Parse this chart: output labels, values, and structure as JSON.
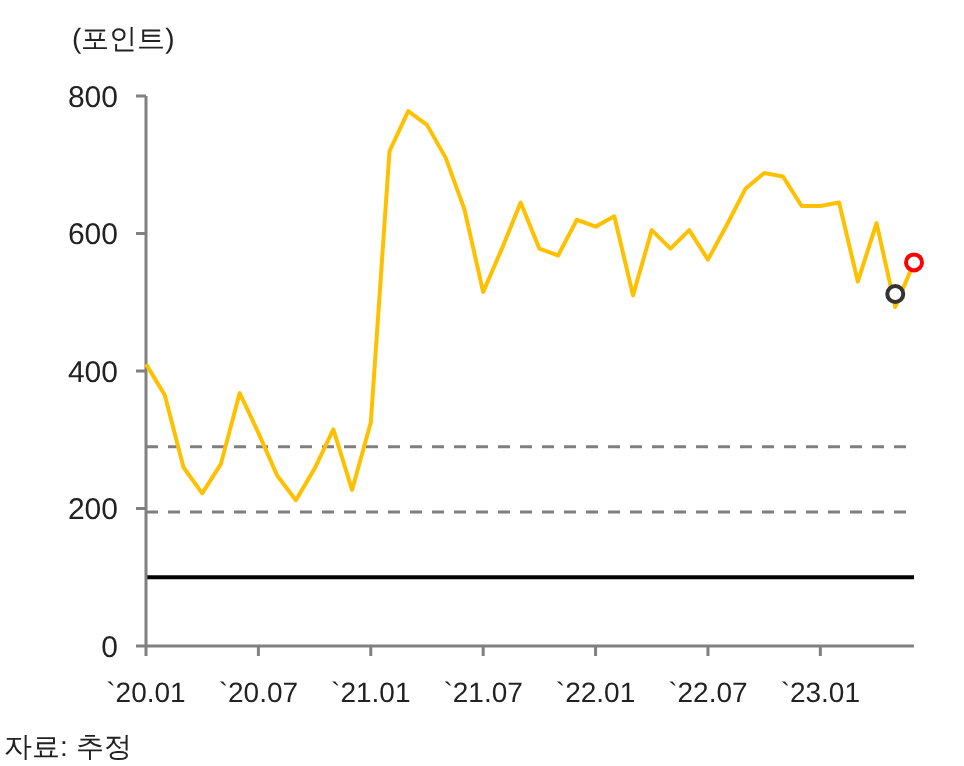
{
  "chart_data": {
    "type": "line",
    "ylabel": "(포인트)",
    "categories": [
      "`20.01",
      null,
      null,
      null,
      null,
      null,
      "`20.07",
      null,
      null,
      null,
      null,
      null,
      "`21.01",
      null,
      null,
      null,
      null,
      null,
      "`21.07",
      null,
      null,
      null,
      null,
      null,
      "`22.01",
      null,
      null,
      null,
      null,
      null,
      "`22.07",
      null,
      null,
      null,
      null,
      null,
      "`23.01",
      null,
      null,
      null,
      null,
      null
    ],
    "series": [
      {
        "color": "#ffc000",
        "values": [
          410,
          365,
          260,
          222,
          265,
          368,
          310,
          248,
          212,
          258,
          315,
          227,
          325,
          720,
          778,
          758,
          710,
          635,
          515,
          578,
          645,
          578,
          568,
          620,
          610,
          625,
          510,
          605,
          578,
          605,
          562,
          612,
          665,
          688,
          683,
          640,
          640,
          645,
          530,
          615,
          493,
          558
        ],
        "marker": "none"
      },
      {
        "type": "scatter",
        "color": "#333333",
        "marker": "circle",
        "values": [
          null,
          null,
          null,
          null,
          null,
          null,
          null,
          null,
          null,
          null,
          null,
          null,
          null,
          null,
          null,
          null,
          null,
          null,
          null,
          null,
          null,
          null,
          null,
          null,
          null,
          null,
          null,
          null,
          null,
          null,
          null,
          null,
          null,
          null,
          null,
          null,
          null,
          null,
          null,
          null,
          512,
          null
        ]
      },
      {
        "type": "scatter",
        "color": "#ff0000",
        "marker": "circle",
        "values": [
          null,
          null,
          null,
          null,
          null,
          null,
          null,
          null,
          null,
          null,
          null,
          null,
          null,
          null,
          null,
          null,
          null,
          null,
          null,
          null,
          null,
          null,
          null,
          null,
          null,
          null,
          null,
          null,
          null,
          null,
          null,
          null,
          null,
          null,
          null,
          null,
          null,
          null,
          null,
          null,
          null,
          558
        ]
      }
    ],
    "ylim": [
      0,
      800
    ],
    "yticks": [
      0,
      200,
      400,
      600,
      800
    ],
    "ref_lines": [
      {
        "axis": "y",
        "value": 290,
        "color": "#7f7f7f",
        "line_style": "dashed"
      },
      {
        "axis": "y",
        "value": 195,
        "color": "#7f7f7f",
        "line_style": "dashed"
      },
      {
        "axis": "y",
        "value": 100,
        "color": "#000000",
        "line_style": "solid"
      }
    ],
    "grid": false,
    "annotations": [
      "자료: 추정"
    ]
  }
}
